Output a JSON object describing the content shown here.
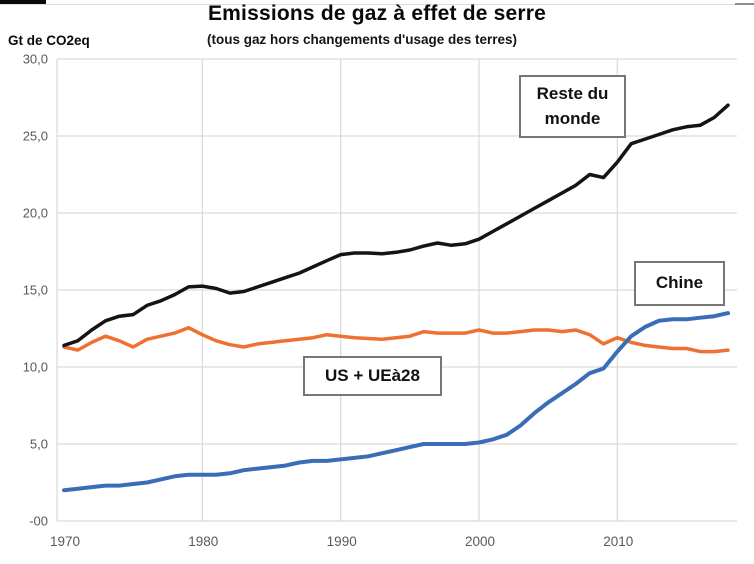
{
  "header": {
    "title": "Emissions de gaz à effet de serre",
    "subtitle": "(tous gaz hors changements d'usage des terres)",
    "unit_label": "Gt de CO2eq"
  },
  "chart_data": {
    "type": "line",
    "title": "Emissions de gaz à effet de serre",
    "subtitle": "(tous gaz hors changements d'usage des terres)",
    "ylabel": "Gt de CO2eq",
    "xlabel": "",
    "x_start": 1970,
    "x_end": 2018,
    "ylim": [
      0,
      30
    ],
    "grid": true,
    "legend_position": "inline-boxed-labels",
    "colors": {
      "grid": "#d9d9d9",
      "tick_text": "#595959",
      "reste_du_monde": "#141414",
      "us_ue": "#ee7130",
      "chine": "#3a6db8"
    },
    "x_ticks": [
      {
        "label": "1970",
        "value": 1970
      },
      {
        "label": "1980",
        "value": 1980
      },
      {
        "label": "1990",
        "value": 1990
      },
      {
        "label": "2000",
        "value": 2000
      },
      {
        "label": "2010",
        "value": 2010
      }
    ],
    "y_ticks": [
      {
        "label": "30,0",
        "value": 30
      },
      {
        "label": "25,0",
        "value": 25
      },
      {
        "label": "20,0",
        "value": 20
      },
      {
        "label": "15,0",
        "value": 15
      },
      {
        "label": "10,0",
        "value": 10
      },
      {
        "label": "5,0",
        "value": 5
      },
      {
        "label": "-00",
        "value": 0
      }
    ],
    "series": [
      {
        "name": "US + UEà28",
        "color": "#ee7130",
        "width": 3.5,
        "values": [
          11.3,
          11.1,
          11.6,
          12.0,
          11.7,
          11.3,
          11.8,
          12.0,
          12.2,
          12.55,
          12.1,
          11.7,
          11.45,
          11.3,
          11.5,
          11.6,
          11.7,
          11.8,
          11.9,
          12.1,
          12.0,
          11.9,
          11.85,
          11.8,
          11.9,
          12.0,
          12.3,
          12.2,
          12.2,
          12.2,
          12.4,
          12.2,
          12.2,
          12.3,
          12.4,
          12.4,
          12.3,
          12.4,
          12.1,
          11.5,
          11.9,
          11.6,
          11.4,
          11.3,
          11.2,
          11.2,
          11.0,
          11.0,
          11.1
        ]
      },
      {
        "name": "Reste du monde",
        "color": "#141414",
        "width": 3.5,
        "values": [
          11.4,
          11.7,
          12.4,
          13.0,
          13.3,
          13.4,
          14.0,
          14.3,
          14.7,
          15.2,
          15.25,
          15.1,
          14.8,
          14.9,
          15.2,
          15.5,
          15.8,
          16.1,
          16.5,
          16.9,
          17.3,
          17.4,
          17.4,
          17.35,
          17.45,
          17.6,
          17.85,
          18.05,
          17.9,
          18.0,
          18.3,
          18.8,
          19.3,
          19.8,
          20.3,
          20.8,
          21.3,
          21.8,
          22.5,
          22.3,
          23.3,
          24.5,
          24.8,
          25.1,
          25.4,
          25.6,
          25.7,
          26.2,
          27.0
        ]
      },
      {
        "name": "Chine",
        "color": "#3a6db8",
        "width": 4,
        "values": [
          2.0,
          2.1,
          2.2,
          2.3,
          2.3,
          2.4,
          2.5,
          2.7,
          2.9,
          3.0,
          3.0,
          3.0,
          3.1,
          3.3,
          3.4,
          3.5,
          3.6,
          3.8,
          3.9,
          3.9,
          4.0,
          4.1,
          4.2,
          4.4,
          4.6,
          4.8,
          5.0,
          5.0,
          5.0,
          5.0,
          5.1,
          5.3,
          5.6,
          6.2,
          7.0,
          7.7,
          8.3,
          8.9,
          9.6,
          9.9,
          11.0,
          12.0,
          12.6,
          13.0,
          13.1,
          13.1,
          13.2,
          13.3,
          13.5
        ]
      }
    ],
    "annotations": [
      {
        "text": "Reste du monde"
      },
      {
        "text": "Chine"
      },
      {
        "text": "US + UEà28"
      }
    ]
  }
}
